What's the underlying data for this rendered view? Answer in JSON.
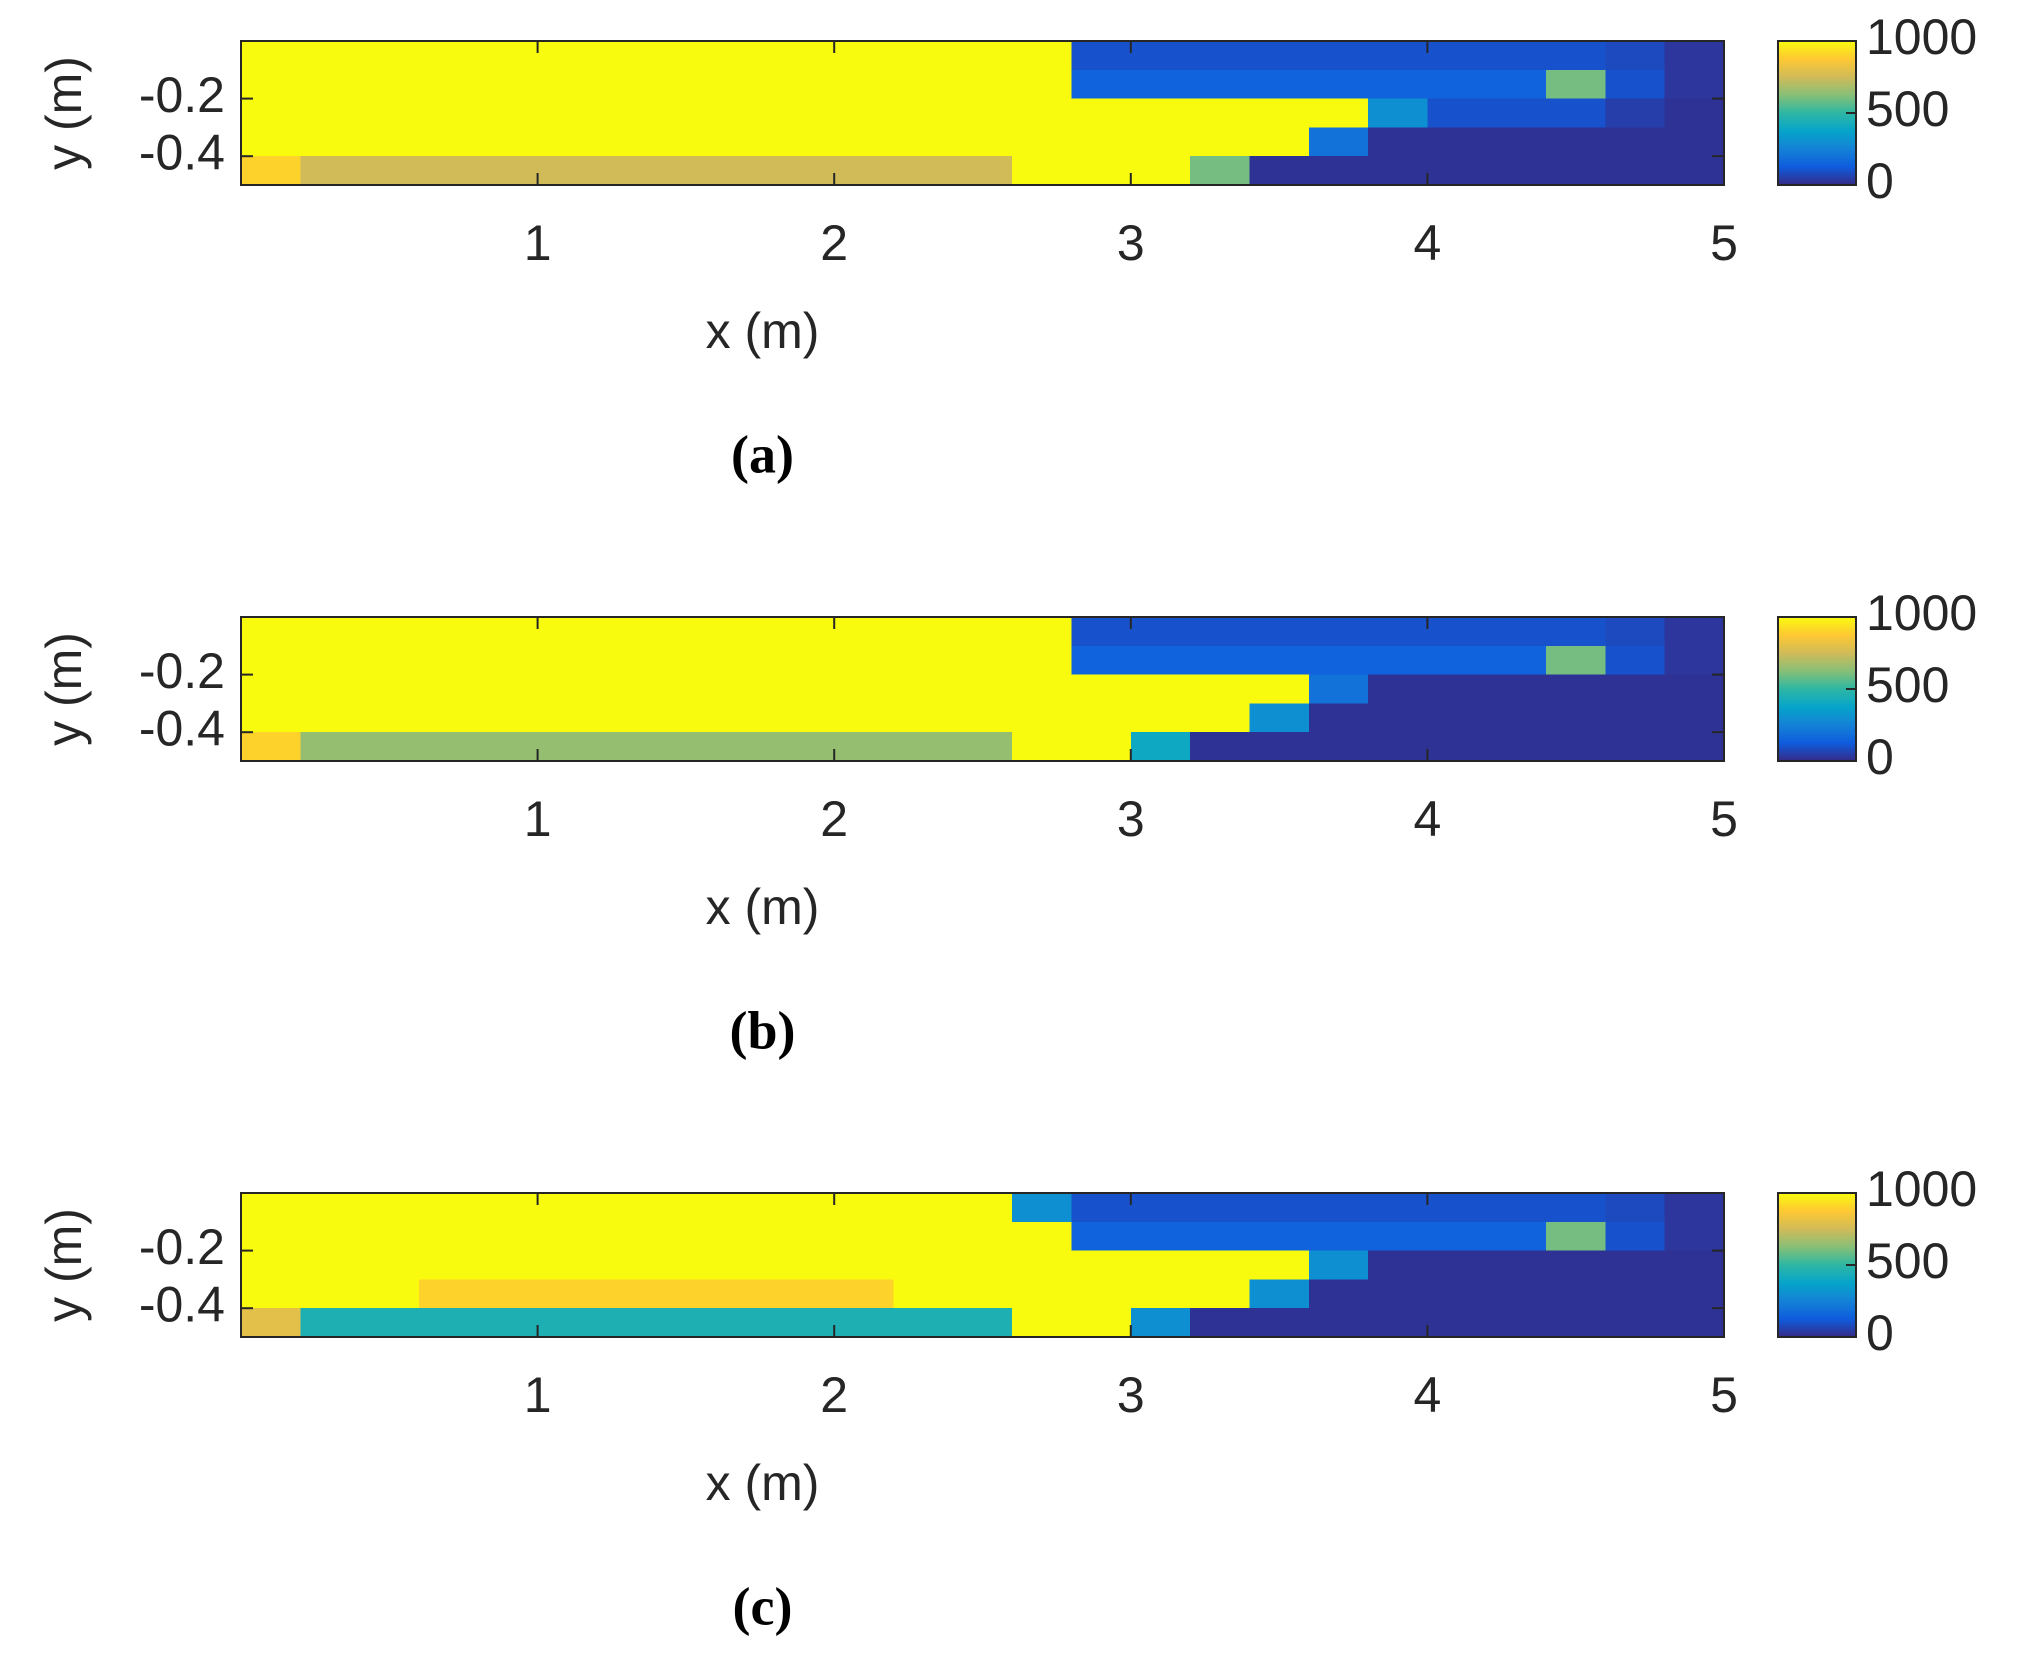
{
  "chart_data": [
    {
      "type": "heatmap",
      "caption": "(a)",
      "xlabel": "x (m)",
      "ylabel": "y (m)",
      "xlim": [
        0,
        5
      ],
      "ylim": [
        -0.5,
        0
      ],
      "xticks": [
        1,
        2,
        3,
        4,
        5
      ],
      "yticks": [
        -0.4,
        -0.2
      ],
      "colorbar": {
        "lim": [
          0,
          1000
        ],
        "ticks": [
          0,
          500,
          1000
        ]
      },
      "colormap": [
        "#352a87",
        "#0f5cdd",
        "#1481d6",
        "#06a4ca",
        "#2eb7a4",
        "#87bf77",
        "#d1bb59",
        "#fec832",
        "#f9fb0e"
      ],
      "values": [
        [
          1000,
          1000,
          1000,
          1000,
          1000,
          1000,
          1000,
          1000,
          1000,
          1000,
          1000,
          1000,
          1000,
          1000,
          100,
          100,
          100,
          100,
          100,
          100,
          100,
          100,
          100,
          80,
          30
        ],
        [
          1000,
          1000,
          1000,
          1000,
          1000,
          1000,
          1000,
          1000,
          1000,
          1000,
          1000,
          1000,
          1000,
          1000,
          150,
          150,
          150,
          150,
          150,
          150,
          150,
          150,
          600,
          100,
          30
        ],
        [
          1000,
          1000,
          1000,
          1000,
          1000,
          1000,
          1000,
          1000,
          1000,
          1000,
          1000,
          1000,
          1000,
          1000,
          1000,
          1000,
          1000,
          1000,
          1000,
          300,
          100,
          100,
          100,
          50,
          20
        ],
        [
          1000,
          1000,
          1000,
          1000,
          1000,
          1000,
          1000,
          1000,
          1000,
          1000,
          1000,
          1000,
          1000,
          1000,
          1000,
          1000,
          1000,
          1000,
          200,
          20,
          20,
          20,
          20,
          20,
          20
        ],
        [
          900,
          750,
          750,
          750,
          750,
          750,
          750,
          750,
          750,
          750,
          750,
          750,
          750,
          1000,
          1000,
          1000,
          600,
          20,
          20,
          20,
          20,
          20,
          20,
          20,
          20
        ]
      ]
    },
    {
      "type": "heatmap",
      "caption": "(b)",
      "xlabel": "x (m)",
      "ylabel": "y (m)",
      "xlim": [
        0,
        5
      ],
      "ylim": [
        -0.5,
        0
      ],
      "xticks": [
        1,
        2,
        3,
        4,
        5
      ],
      "yticks": [
        -0.4,
        -0.2
      ],
      "colorbar": {
        "lim": [
          0,
          1000
        ],
        "ticks": [
          0,
          500,
          1000
        ]
      },
      "colormap": [
        "#352a87",
        "#0f5cdd",
        "#1481d6",
        "#06a4ca",
        "#2eb7a4",
        "#87bf77",
        "#d1bb59",
        "#fec832",
        "#f9fb0e"
      ],
      "values": [
        [
          1000,
          1000,
          1000,
          1000,
          1000,
          1000,
          1000,
          1000,
          1000,
          1000,
          1000,
          1000,
          1000,
          1000,
          100,
          100,
          100,
          100,
          100,
          100,
          100,
          100,
          100,
          80,
          30
        ],
        [
          1000,
          1000,
          1000,
          1000,
          1000,
          1000,
          1000,
          1000,
          1000,
          1000,
          1000,
          1000,
          1000,
          1000,
          150,
          150,
          150,
          150,
          150,
          150,
          150,
          150,
          600,
          100,
          30
        ],
        [
          1000,
          1000,
          1000,
          1000,
          1000,
          1000,
          1000,
          1000,
          1000,
          1000,
          1000,
          1000,
          1000,
          1000,
          1000,
          1000,
          1000,
          1000,
          200,
          20,
          20,
          20,
          20,
          20,
          20
        ],
        [
          1000,
          1000,
          1000,
          1000,
          1000,
          1000,
          1000,
          1000,
          1000,
          1000,
          1000,
          1000,
          1000,
          1000,
          1000,
          1000,
          1000,
          300,
          20,
          20,
          20,
          20,
          20,
          20,
          20
        ],
        [
          900,
          650,
          650,
          650,
          650,
          650,
          650,
          650,
          650,
          650,
          650,
          650,
          650,
          1000,
          1000,
          400,
          20,
          20,
          20,
          20,
          20,
          20,
          20,
          20,
          20
        ]
      ]
    },
    {
      "type": "heatmap",
      "caption": "(c)",
      "xlabel": "x (m)",
      "ylabel": "y (m)",
      "xlim": [
        0,
        5
      ],
      "ylim": [
        -0.5,
        0
      ],
      "xticks": [
        1,
        2,
        3,
        4,
        5
      ],
      "yticks": [
        -0.4,
        -0.2
      ],
      "colorbar": {
        "lim": [
          0,
          1000
        ],
        "ticks": [
          0,
          500,
          1000
        ]
      },
      "colormap": [
        "#352a87",
        "#0f5cdd",
        "#1481d6",
        "#06a4ca",
        "#2eb7a4",
        "#87bf77",
        "#d1bb59",
        "#fec832",
        "#f9fb0e"
      ],
      "values": [
        [
          1000,
          1000,
          1000,
          1000,
          1000,
          1000,
          1000,
          1000,
          1000,
          1000,
          1000,
          1000,
          1000,
          300,
          100,
          100,
          100,
          100,
          100,
          100,
          100,
          100,
          100,
          80,
          30
        ],
        [
          1000,
          1000,
          1000,
          1000,
          1000,
          1000,
          1000,
          1000,
          1000,
          1000,
          1000,
          1000,
          1000,
          1000,
          150,
          150,
          150,
          150,
          150,
          150,
          150,
          150,
          600,
          100,
          30
        ],
        [
          1000,
          1000,
          1000,
          1000,
          1000,
          1000,
          1000,
          1000,
          1000,
          1000,
          1000,
          1000,
          1000,
          1000,
          1000,
          1000,
          1000,
          1000,
          300,
          20,
          20,
          20,
          20,
          20,
          20
        ],
        [
          1000,
          1000,
          1000,
          900,
          900,
          900,
          900,
          900,
          900,
          900,
          900,
          1000,
          1000,
          1000,
          1000,
          1000,
          1000,
          300,
          20,
          20,
          20,
          20,
          20,
          20,
          20
        ],
        [
          800,
          450,
          450,
          450,
          450,
          450,
          450,
          450,
          450,
          450,
          450,
          450,
          450,
          1000,
          1000,
          300,
          20,
          20,
          20,
          20,
          20,
          20,
          20,
          20,
          20
        ]
      ]
    }
  ]
}
